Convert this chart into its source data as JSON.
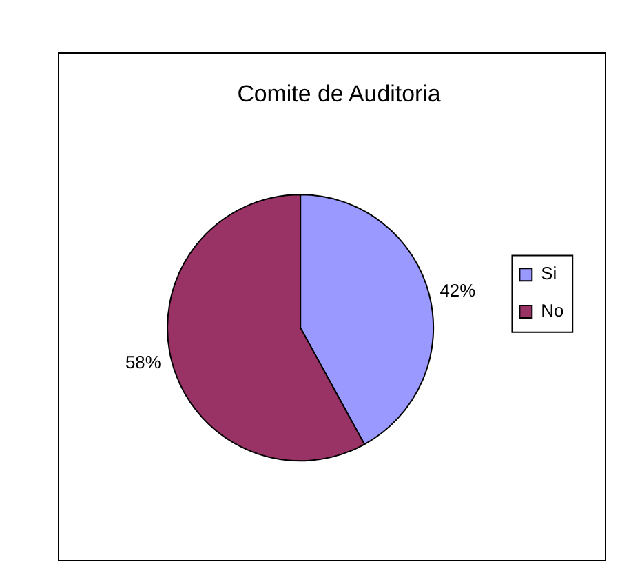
{
  "chart_data": {
    "type": "pie",
    "title": "Comite de Auditoria",
    "categories": [
      "Si",
      "No"
    ],
    "values": [
      42,
      58
    ],
    "colors": [
      "#9999ff",
      "#993366"
    ],
    "value_labels": [
      "42%",
      "58%"
    ],
    "legend": "right"
  }
}
